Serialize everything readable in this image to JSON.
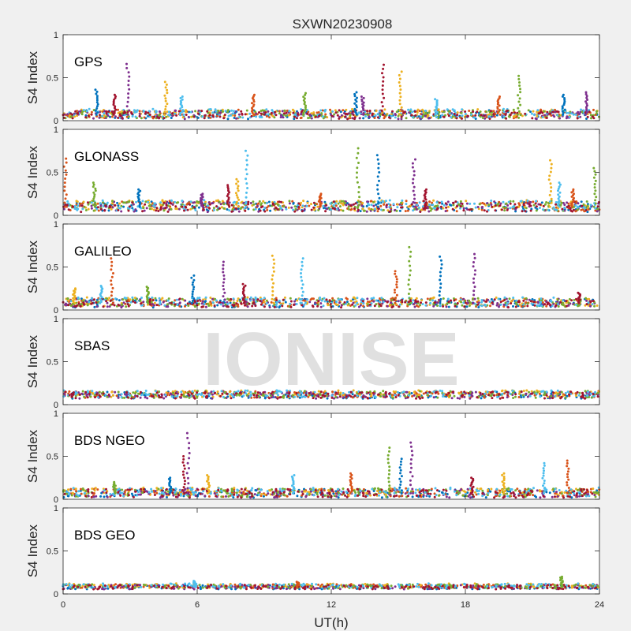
{
  "figure": {
    "title": "SXWN20230908",
    "watermark": "IONISE",
    "background": "#f0f0f0",
    "axes_background": "#ffffff"
  },
  "chart_data": {
    "type": "scatter",
    "title": "SXWN20230908",
    "xlabel": "UT(h)",
    "xlim": [
      0,
      24
    ],
    "xticks": [
      0,
      6,
      12,
      18,
      24
    ],
    "ylabel": "S4 Index",
    "ylim": [
      0,
      1
    ],
    "yticks": [
      0,
      0.5,
      1
    ],
    "yticklabels": [
      "0",
      "0.5",
      "1"
    ],
    "grid": false,
    "series_colors": [
      "#0072bd",
      "#d95319",
      "#edb120",
      "#7e2f8e",
      "#77ac30",
      "#4dbeee",
      "#a2142f"
    ],
    "panels": [
      {
        "label": "GPS",
        "baseline": 0.07,
        "noise": 0.05,
        "spikes": [
          [
            1.5,
            0.36
          ],
          [
            2.9,
            0.66
          ],
          [
            2.3,
            0.3
          ],
          [
            4.6,
            0.45
          ],
          [
            5.3,
            0.28
          ],
          [
            8.5,
            0.3
          ],
          [
            10.8,
            0.32
          ],
          [
            13.1,
            0.33
          ],
          [
            13.4,
            0.28
          ],
          [
            14.3,
            0.65
          ],
          [
            15.1,
            0.57
          ],
          [
            16.7,
            0.25
          ],
          [
            19.5,
            0.28
          ],
          [
            20.4,
            0.52
          ],
          [
            22.4,
            0.3
          ],
          [
            23.4,
            0.33
          ]
        ]
      },
      {
        "label": "GLONASS",
        "baseline": 0.1,
        "noise": 0.06,
        "spikes": [
          [
            0.1,
            0.66
          ],
          [
            1.4,
            0.38
          ],
          [
            3.4,
            0.3
          ],
          [
            6.2,
            0.25
          ],
          [
            7.4,
            0.35
          ],
          [
            7.8,
            0.42
          ],
          [
            8.2,
            0.75
          ],
          [
            11.5,
            0.25
          ],
          [
            13.2,
            0.78
          ],
          [
            14.1,
            0.7
          ],
          [
            15.7,
            0.65
          ],
          [
            16.2,
            0.3
          ],
          [
            21.8,
            0.64
          ],
          [
            22.2,
            0.38
          ],
          [
            22.8,
            0.3
          ],
          [
            23.8,
            0.55
          ]
        ]
      },
      {
        "label": "GALILEO",
        "baseline": 0.08,
        "noise": 0.05,
        "spikes": [
          [
            0.5,
            0.25
          ],
          [
            1.7,
            0.28
          ],
          [
            2.2,
            0.6
          ],
          [
            3.8,
            0.27
          ],
          [
            5.8,
            0.4
          ],
          [
            7.2,
            0.56
          ],
          [
            8.1,
            0.3
          ],
          [
            9.4,
            0.63
          ],
          [
            10.7,
            0.6
          ],
          [
            14.9,
            0.45
          ],
          [
            15.5,
            0.73
          ],
          [
            16.9,
            0.62
          ],
          [
            18.4,
            0.65
          ],
          [
            23.1,
            0.2
          ]
        ]
      },
      {
        "label": "SBAS",
        "baseline": 0.11,
        "noise": 0.04,
        "spikes": []
      },
      {
        "label": "BDS NGEO",
        "baseline": 0.07,
        "noise": 0.05,
        "spikes": [
          [
            2.3,
            0.2
          ],
          [
            4.8,
            0.25
          ],
          [
            5.6,
            0.77
          ],
          [
            5.4,
            0.5
          ],
          [
            6.5,
            0.28
          ],
          [
            10.3,
            0.28
          ],
          [
            12.9,
            0.3
          ],
          [
            14.6,
            0.6
          ],
          [
            15.1,
            0.47
          ],
          [
            15.6,
            0.66
          ],
          [
            18.3,
            0.25
          ],
          [
            19.7,
            0.3
          ],
          [
            21.5,
            0.42
          ],
          [
            22.6,
            0.45
          ]
        ]
      },
      {
        "label": "BDS GEO",
        "baseline": 0.08,
        "noise": 0.025,
        "spikes": [
          [
            5.9,
            0.15
          ],
          [
            10.5,
            0.14
          ],
          [
            22.3,
            0.2
          ]
        ]
      }
    ]
  }
}
